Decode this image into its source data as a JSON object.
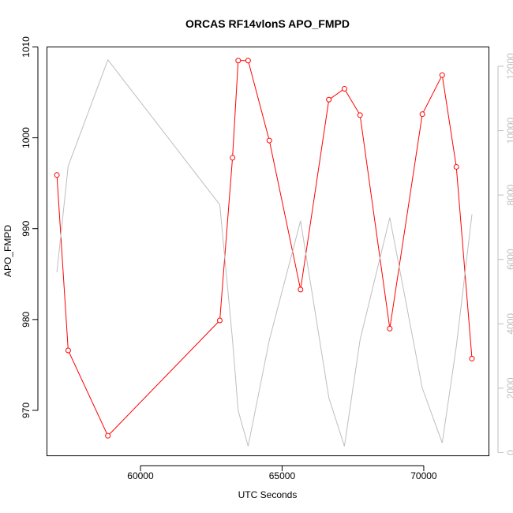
{
  "chart_data": {
    "type": "line",
    "title": "ORCAS RF14vlonS APO_FMPD",
    "xlabel": "UTC Seconds",
    "ylabel": "APO_FMPD",
    "xlim": [
      56700,
      72300
    ],
    "ylim": [
      965,
      1010
    ],
    "y2lim": [
      -100,
      12600
    ],
    "x_ticks": [
      60000,
      65000,
      70000
    ],
    "y_ticks": [
      970,
      980,
      990,
      1000,
      1010
    ],
    "y2_ticks": [
      0,
      2000,
      4000,
      6000,
      8000,
      10000,
      12000
    ],
    "grid": false,
    "series": [
      {
        "axis": "left",
        "color": "#ff0000",
        "marker": "open-circle",
        "x": [
          57050,
          57450,
          58850,
          62800,
          63250,
          63450,
          63800,
          64550,
          65650,
          66650,
          67200,
          67750,
          68800,
          69950,
          70650,
          71150,
          71700
        ],
        "y": [
          995.9,
          976.6,
          967.2,
          979.9,
          997.8,
          1008.5,
          1008.5,
          999.7,
          983.3,
          1004.2,
          1005.4,
          1002.5,
          979.0,
          1002.6,
          1006.9,
          996.8,
          975.7
        ]
      },
      {
        "axis": "right",
        "color": "#bebebe",
        "x": [
          57050,
          57450,
          58850,
          62800,
          63250,
          63450,
          63800,
          64550,
          65650,
          66650,
          67200,
          67750,
          68800,
          69950,
          70650,
          71150,
          71700
        ],
        "y": [
          5600,
          8900,
          12200,
          7700,
          3500,
          1300,
          200,
          3500,
          7200,
          1700,
          200,
          3500,
          7300,
          2000,
          300,
          3300,
          7400
        ]
      }
    ]
  }
}
